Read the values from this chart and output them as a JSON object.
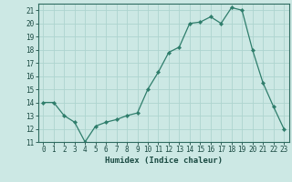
{
  "x": [
    0,
    1,
    2,
    3,
    4,
    5,
    6,
    7,
    8,
    9,
    10,
    11,
    12,
    13,
    14,
    15,
    16,
    17,
    18,
    19,
    20,
    21,
    22,
    23
  ],
  "y": [
    14,
    14,
    13,
    12.5,
    11,
    12.2,
    12.5,
    12.7,
    13,
    13.2,
    15,
    16.3,
    17.8,
    18.2,
    20,
    20.1,
    20.5,
    20,
    21.2,
    21,
    18,
    15.5,
    13.7,
    12
  ],
  "xlabel": "Humidex (Indice chaleur)",
  "xlim": [
    -0.5,
    23.5
  ],
  "ylim": [
    11,
    21.5
  ],
  "yticks": [
    11,
    12,
    13,
    14,
    15,
    16,
    17,
    18,
    19,
    20,
    21
  ],
  "xticks": [
    0,
    1,
    2,
    3,
    4,
    5,
    6,
    7,
    8,
    9,
    10,
    11,
    12,
    13,
    14,
    15,
    16,
    17,
    18,
    19,
    20,
    21,
    22,
    23
  ],
  "line_color": "#2e7d6b",
  "marker": "D",
  "marker_size": 2.2,
  "bg_color": "#cce8e4",
  "grid_color": "#aed4cf",
  "axes_color": "#2e6b60",
  "font_color": "#1a4a42",
  "label_fontsize": 6.5,
  "tick_fontsize": 5.5
}
